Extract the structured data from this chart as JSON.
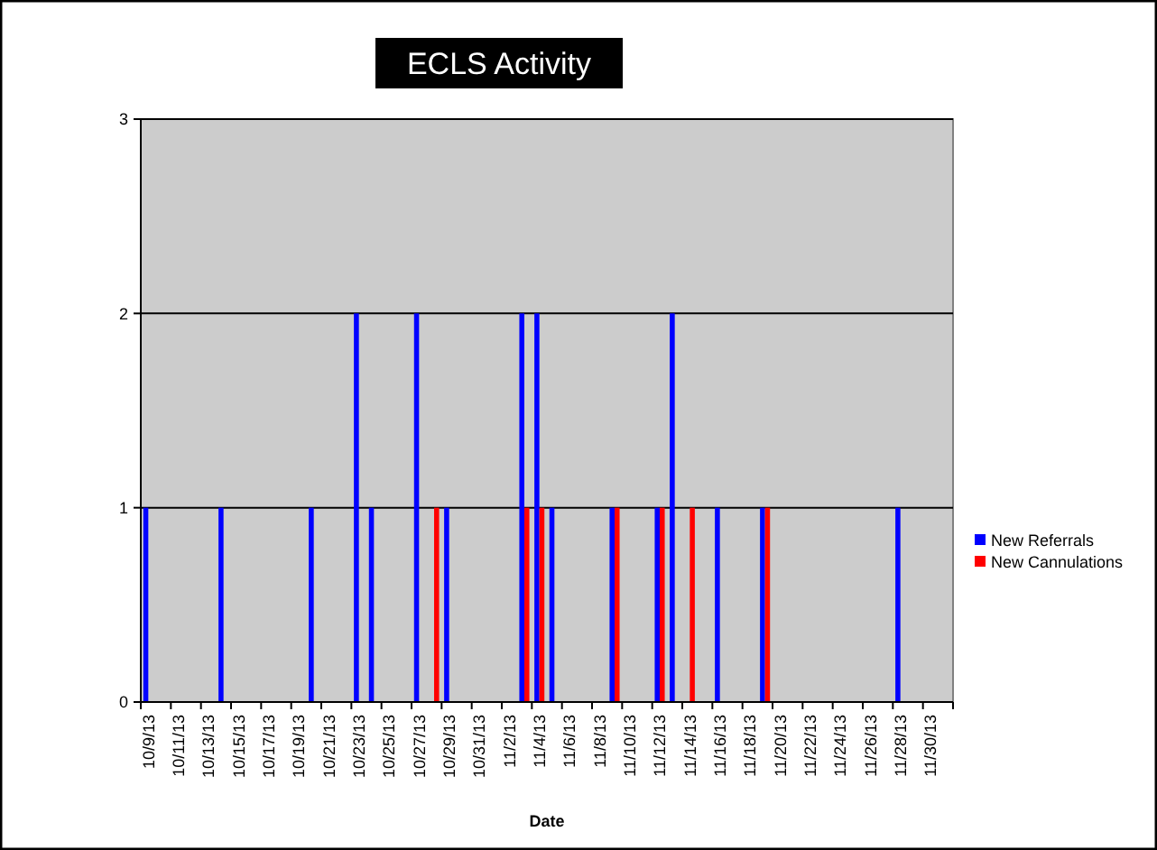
{
  "chart_data": {
    "type": "bar",
    "title": "ECLS Activity",
    "xlabel": "Date",
    "categories": [
      "10/9/13",
      null,
      "10/11/13",
      null,
      "10/13/13",
      null,
      "10/15/13",
      null,
      "10/17/13",
      null,
      "10/19/13",
      null,
      "10/21/13",
      null,
      "10/23/13",
      null,
      "10/25/13",
      null,
      "10/27/13",
      null,
      "10/29/13",
      null,
      "10/31/13",
      null,
      "11/2/13",
      null,
      "11/4/13",
      null,
      "11/6/13",
      null,
      "11/8/13",
      null,
      "11/10/13",
      null,
      "11/12/13",
      null,
      "11/14/13",
      null,
      "11/16/13",
      null,
      "11/18/13",
      null,
      "11/20/13",
      null,
      "11/22/13",
      null,
      "11/24/13",
      null,
      "11/26/13",
      null,
      "11/28/13",
      null,
      "11/30/13",
      null
    ],
    "series": [
      {
        "name": "New Referrals",
        "color": "#0000ff",
        "values": [
          1,
          0,
          0,
          0,
          0,
          1,
          0,
          0,
          0,
          0,
          0,
          1,
          0,
          0,
          2,
          1,
          0,
          0,
          2,
          0,
          1,
          0,
          0,
          0,
          0,
          2,
          2,
          1,
          0,
          0,
          0,
          1,
          0,
          0,
          1,
          2,
          0,
          0,
          1,
          0,
          0,
          1,
          0,
          0,
          0,
          0,
          0,
          0,
          0,
          0,
          1,
          0,
          0,
          0
        ]
      },
      {
        "name": "New Cannulations",
        "color": "#ff0000",
        "values": [
          0,
          0,
          0,
          0,
          0,
          0,
          0,
          0,
          0,
          0,
          0,
          0,
          0,
          0,
          0,
          0,
          0,
          0,
          0,
          1,
          0,
          0,
          0,
          0,
          0,
          1,
          1,
          0,
          0,
          0,
          0,
          1,
          0,
          0,
          1,
          0,
          1,
          0,
          0,
          0,
          0,
          1,
          0,
          0,
          0,
          0,
          0,
          0,
          0,
          0,
          0,
          0,
          0,
          0
        ]
      }
    ],
    "ylim": [
      0,
      3
    ],
    "yticks": [
      0,
      1,
      2,
      3
    ],
    "grid": "y",
    "legend": "right"
  }
}
